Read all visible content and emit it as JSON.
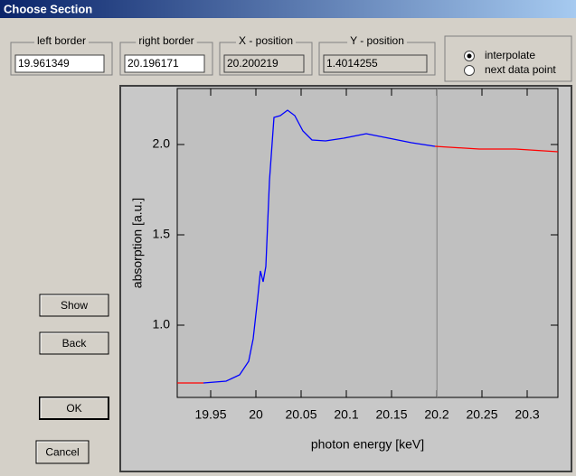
{
  "window": {
    "title": "Choose Section"
  },
  "fields": [
    {
      "label": "left border",
      "value": "19.961349",
      "readonly": false
    },
    {
      "label": "right border",
      "value": "20.196171",
      "readonly": false
    },
    {
      "label": "X - position",
      "value": "20.200219",
      "readonly": true
    },
    {
      "label": "Y - position",
      "value": "1.4014255",
      "readonly": true
    }
  ],
  "options": [
    {
      "label": "interpolate",
      "selected": true
    },
    {
      "label": "next data point",
      "selected": false
    }
  ],
  "buttons": [
    "Show",
    "Back",
    "OK",
    "Cancel"
  ],
  "chart_data": {
    "type": "line",
    "xlabel": "photon energy [keV]",
    "ylabel": "absorption [a.u.]",
    "xlim": [
      19.913,
      20.334
    ],
    "ylim": [
      0.6,
      2.31
    ],
    "xticks": [
      19.95,
      20,
      20.05,
      20.1,
      20.15,
      20.2,
      20.25,
      20.3
    ],
    "yticks": [
      {
        "value": 1,
        "label": "1.0"
      },
      {
        "value": 1.5,
        "label": "1.5"
      },
      {
        "value": 2,
        "label": "2.0"
      }
    ],
    "x": [
      19.913,
      19.942,
      19.967,
      19.982,
      19.992,
      19.997,
      20.002,
      20.005,
      20.008,
      20.011,
      20.015,
      20.02,
      20.027,
      20.035,
      20.043,
      20.052,
      20.062,
      20.077,
      20.097,
      20.122,
      20.147,
      20.172,
      20.198,
      20.247,
      20.287,
      20.334
    ],
    "series": [
      {
        "color": "#ff0000",
        "values": [
          0.68,
          0.68,
          null,
          null,
          null,
          null,
          null,
          null,
          null,
          null,
          null,
          null,
          null,
          null,
          null,
          null,
          null,
          null,
          null,
          null,
          null,
          null,
          1.99,
          1.975,
          1.975,
          1.96
        ]
      },
      {
        "color": "#0000ff",
        "values": [
          null,
          0.68,
          0.69,
          0.725,
          0.8,
          0.925,
          1.15,
          1.3,
          1.24,
          1.325,
          1.8,
          2.15,
          2.16,
          2.19,
          2.16,
          2.075,
          2.025,
          2.02,
          2.035,
          2.06,
          2.035,
          2.01,
          1.99,
          null,
          null,
          null
        ]
      }
    ]
  }
}
